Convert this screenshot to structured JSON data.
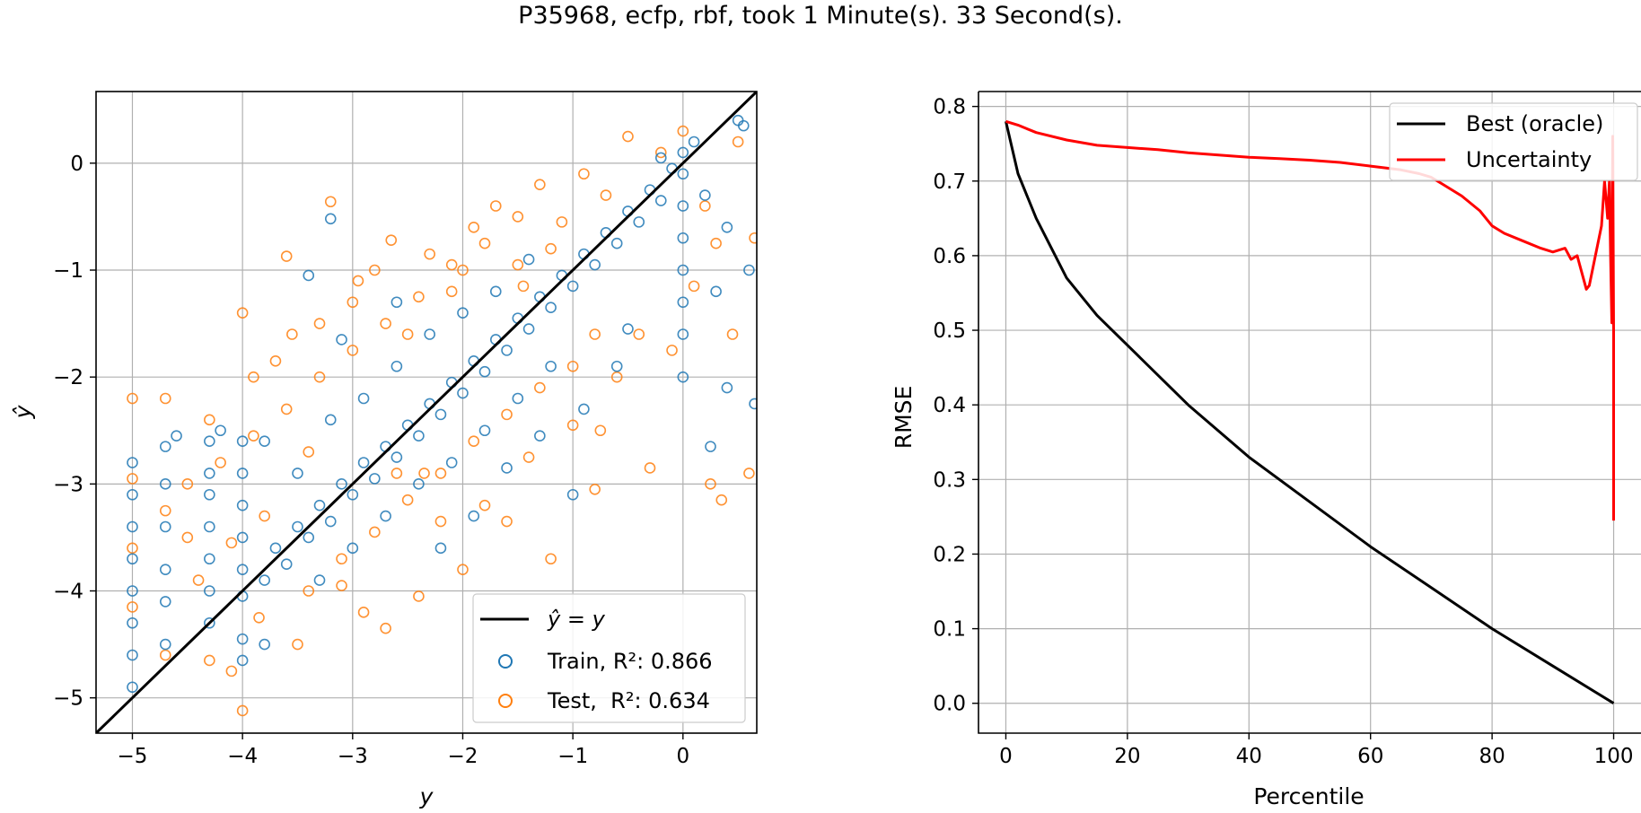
{
  "figure_title": "P35968, ecfp, rbf, took 1 Minute(s). 33 Second(s).",
  "colors": {
    "train": "#1f77b4",
    "test": "#ff7f0e",
    "identity": "#000000",
    "oracle": "#000000",
    "uncertainty": "#ff0000",
    "grid": "#b0b0b0"
  },
  "chart_data": [
    {
      "type": "scatter",
      "title": "",
      "xlabel": "y",
      "ylabel": "ŷ",
      "xlim": [
        -5.33,
        0.67
      ],
      "ylim": [
        -5.33,
        0.67
      ],
      "xticks": [
        -5,
        -4,
        -3,
        -2,
        -1,
        0
      ],
      "yticks": [
        -5,
        -4,
        -3,
        -2,
        -1,
        0
      ],
      "grid": true,
      "legend_position": "lower-right",
      "legend": [
        {
          "kind": "line",
          "label": "ŷ = y"
        },
        {
          "kind": "marker",
          "label": "Train, R²: 0.866"
        },
        {
          "kind": "marker",
          "label": "Test,  R²: 0.634"
        }
      ],
      "reference_line": {
        "name": "ŷ = y",
        "slope": 1,
        "intercept": 0
      },
      "series": [
        {
          "name": "Train",
          "marker": "open-circle",
          "r2": 0.866,
          "points": [
            [
              -5.0,
              -4.9
            ],
            [
              -5.0,
              -4.6
            ],
            [
              -5.0,
              -4.3
            ],
            [
              -5.0,
              -4.0
            ],
            [
              -5.0,
              -3.7
            ],
            [
              -5.0,
              -3.4
            ],
            [
              -5.0,
              -3.1
            ],
            [
              -5.0,
              -2.8
            ],
            [
              -4.7,
              -4.5
            ],
            [
              -4.7,
              -4.1
            ],
            [
              -4.7,
              -3.8
            ],
            [
              -4.7,
              -3.4
            ],
            [
              -4.7,
              -3.0
            ],
            [
              -4.7,
              -2.65
            ],
            [
              -4.3,
              -4.3
            ],
            [
              -4.3,
              -4.0
            ],
            [
              -4.3,
              -3.7
            ],
            [
              -4.3,
              -3.4
            ],
            [
              -4.3,
              -3.1
            ],
            [
              -4.3,
              -2.9
            ],
            [
              -4.3,
              -2.6
            ],
            [
              -4.0,
              -4.05
            ],
            [
              -4.0,
              -3.8
            ],
            [
              -4.0,
              -3.5
            ],
            [
              -4.0,
              -3.2
            ],
            [
              -4.0,
              -2.9
            ],
            [
              -4.0,
              -2.6
            ],
            [
              -4.0,
              -4.65
            ],
            [
              -3.8,
              -3.9
            ],
            [
              -3.7,
              -3.6
            ],
            [
              -3.6,
              -3.75
            ],
            [
              -3.5,
              -3.4
            ],
            [
              -3.4,
              -3.5
            ],
            [
              -3.3,
              -3.2
            ],
            [
              -3.2,
              -3.35
            ],
            [
              -3.1,
              -3.0
            ],
            [
              -3.0,
              -3.1
            ],
            [
              -2.9,
              -2.8
            ],
            [
              -2.8,
              -2.95
            ],
            [
              -2.7,
              -2.65
            ],
            [
              -2.6,
              -2.75
            ],
            [
              -2.5,
              -2.45
            ],
            [
              -2.4,
              -2.55
            ],
            [
              -2.3,
              -2.25
            ],
            [
              -2.2,
              -2.35
            ],
            [
              -2.1,
              -2.05
            ],
            [
              -2.0,
              -2.15
            ],
            [
              -1.9,
              -1.85
            ],
            [
              -1.8,
              -1.95
            ],
            [
              -1.7,
              -1.65
            ],
            [
              -1.6,
              -1.75
            ],
            [
              -1.5,
              -1.45
            ],
            [
              -1.4,
              -1.55
            ],
            [
              -1.3,
              -1.25
            ],
            [
              -1.2,
              -1.35
            ],
            [
              -1.1,
              -1.05
            ],
            [
              -1.0,
              -1.15
            ],
            [
              -0.9,
              -0.85
            ],
            [
              -0.8,
              -0.95
            ],
            [
              -0.7,
              -0.65
            ],
            [
              -0.6,
              -0.75
            ],
            [
              -0.5,
              -0.45
            ],
            [
              -0.4,
              -0.55
            ],
            [
              -0.3,
              -0.25
            ],
            [
              -0.2,
              -0.35
            ],
            [
              -0.1,
              -0.05
            ],
            [
              -3.5,
              -2.9
            ],
            [
              -3.2,
              -2.4
            ],
            [
              -2.9,
              -2.2
            ],
            [
              -2.6,
              -1.9
            ],
            [
              -2.3,
              -1.6
            ],
            [
              -2.0,
              -1.4
            ],
            [
              -1.7,
              -1.2
            ],
            [
              -1.4,
              -0.9
            ],
            [
              -3.3,
              -3.9
            ],
            [
              -3.0,
              -3.6
            ],
            [
              -2.7,
              -3.3
            ],
            [
              -2.4,
              -3.0
            ],
            [
              -2.1,
              -2.8
            ],
            [
              -1.8,
              -2.5
            ],
            [
              -1.5,
              -2.2
            ],
            [
              -1.2,
              -1.9
            ],
            [
              -3.8,
              -2.6
            ],
            [
              -3.4,
              -1.05
            ],
            [
              -3.2,
              -0.52
            ],
            [
              -3.1,
              -1.65
            ],
            [
              -2.6,
              -1.3
            ],
            [
              -2.2,
              -3.6
            ],
            [
              -1.9,
              -3.3
            ],
            [
              -1.6,
              -2.85
            ],
            [
              -1.3,
              -2.55
            ],
            [
              -1.0,
              -3.1
            ],
            [
              -0.9,
              -2.3
            ],
            [
              -0.6,
              -1.9
            ],
            [
              0.0,
              -0.1
            ],
            [
              0.0,
              -0.4
            ],
            [
              0.0,
              -0.7
            ],
            [
              0.0,
              -1.0
            ],
            [
              0.0,
              -1.3
            ],
            [
              0.0,
              -1.6
            ],
            [
              0.0,
              -2.0
            ],
            [
              0.0,
              0.1
            ],
            [
              0.2,
              -0.3
            ],
            [
              0.3,
              -1.2
            ],
            [
              0.4,
              -2.1
            ],
            [
              0.5,
              0.4
            ],
            [
              0.55,
              0.35
            ],
            [
              0.6,
              -1.0
            ],
            [
              0.65,
              -2.25
            ],
            [
              0.25,
              -2.65
            ],
            [
              0.1,
              0.2
            ],
            [
              -0.2,
              0.05
            ],
            [
              0.4,
              -0.6
            ],
            [
              -0.5,
              -1.55
            ],
            [
              -4.0,
              -4.45
            ],
            [
              -3.8,
              -4.5
            ],
            [
              -4.2,
              -2.5
            ],
            [
              -4.6,
              -2.55
            ]
          ]
        },
        {
          "name": "Test",
          "marker": "open-circle",
          "r2": 0.634,
          "points": [
            [
              -5.0,
              -2.2
            ],
            [
              -5.0,
              -2.95
            ],
            [
              -5.0,
              -3.6
            ],
            [
              -5.0,
              -4.15
            ],
            [
              -4.7,
              -2.2
            ],
            [
              -4.7,
              -3.25
            ],
            [
              -4.7,
              -4.6
            ],
            [
              -4.5,
              -3.5
            ],
            [
              -4.3,
              -2.4
            ],
            [
              -4.3,
              -4.65
            ],
            [
              -4.1,
              -4.75
            ],
            [
              -4.0,
              -1.4
            ],
            [
              -4.0,
              -5.12
            ],
            [
              -3.9,
              -2.0
            ],
            [
              -3.8,
              -3.3
            ],
            [
              -3.7,
              -1.85
            ],
            [
              -3.6,
              -0.87
            ],
            [
              -3.5,
              -4.5
            ],
            [
              -3.4,
              -2.7
            ],
            [
              -3.3,
              -1.5
            ],
            [
              -3.2,
              -0.36
            ],
            [
              -3.1,
              -3.95
            ],
            [
              -3.0,
              -1.3
            ],
            [
              -2.9,
              -4.2
            ],
            [
              -2.8,
              -1.0
            ],
            [
              -2.7,
              -4.35
            ],
            [
              -2.6,
              -2.9
            ],
            [
              -2.5,
              -1.6
            ],
            [
              -2.4,
              -4.05
            ],
            [
              -2.3,
              -0.85
            ],
            [
              -2.2,
              -3.35
            ],
            [
              -2.1,
              -1.2
            ],
            [
              -2.0,
              -3.8
            ],
            [
              -1.9,
              -0.6
            ],
            [
              -1.8,
              -3.2
            ],
            [
              -1.7,
              -0.4
            ],
            [
              -1.6,
              -3.35
            ],
            [
              -1.5,
              -0.95
            ],
            [
              -1.4,
              -2.75
            ],
            [
              -1.3,
              -0.2
            ],
            [
              -1.2,
              -3.7
            ],
            [
              -1.1,
              -0.55
            ],
            [
              -1.0,
              -2.45
            ],
            [
              -0.9,
              -0.1
            ],
            [
              -0.8,
              -3.05
            ],
            [
              -0.7,
              -0.3
            ],
            [
              -0.6,
              -2.0
            ],
            [
              -0.5,
              0.25
            ],
            [
              -0.4,
              -1.6
            ],
            [
              -0.3,
              -2.85
            ],
            [
              -0.2,
              0.1
            ],
            [
              -0.1,
              -1.75
            ],
            [
              0.0,
              0.3
            ],
            [
              0.1,
              -1.15
            ],
            [
              0.2,
              -0.4
            ],
            [
              0.25,
              -3.0
            ],
            [
              0.3,
              -0.75
            ],
            [
              0.35,
              -3.15
            ],
            [
              0.45,
              -1.6
            ],
            [
              0.6,
              -2.9
            ],
            [
              0.65,
              -0.7
            ],
            [
              0.5,
              0.2
            ],
            [
              -3.6,
              -2.3
            ],
            [
              -3.3,
              -2.0
            ],
            [
              -3.0,
              -1.75
            ],
            [
              -2.7,
              -1.5
            ],
            [
              -2.4,
              -1.25
            ],
            [
              -2.1,
              -0.95
            ],
            [
              -1.8,
              -0.75
            ],
            [
              -1.5,
              -0.5
            ],
            [
              -3.4,
              -4.0
            ],
            [
              -3.1,
              -3.7
            ],
            [
              -2.8,
              -3.45
            ],
            [
              -2.5,
              -3.15
            ],
            [
              -2.2,
              -2.9
            ],
            [
              -1.9,
              -2.6
            ],
            [
              -1.6,
              -2.35
            ],
            [
              -1.3,
              -2.1
            ],
            [
              -4.5,
              -3.0
            ],
            [
              -4.2,
              -2.8
            ],
            [
              -3.9,
              -2.55
            ],
            [
              -4.4,
              -3.9
            ],
            [
              -4.1,
              -3.55
            ],
            [
              -3.85,
              -4.25
            ],
            [
              -1.0,
              -1.9
            ],
            [
              -0.8,
              -1.6
            ],
            [
              -2.0,
              -1.0
            ],
            [
              -2.35,
              -2.9
            ],
            [
              -1.2,
              -0.8
            ],
            [
              -0.75,
              -2.5
            ],
            [
              -3.55,
              -1.6
            ],
            [
              -2.95,
              -1.1
            ],
            [
              -2.65,
              -0.72
            ],
            [
              -1.45,
              -1.15
            ]
          ]
        }
      ]
    },
    {
      "type": "line",
      "title": "",
      "xlabel": "Percentile",
      "ylabel": "RMSE",
      "xlim": [
        -4.5,
        104.5
      ],
      "ylim": [
        -0.04,
        0.82
      ],
      "xticks": [
        0,
        20,
        40,
        60,
        80,
        100
      ],
      "yticks": [
        0.0,
        0.1,
        0.2,
        0.3,
        0.4,
        0.5,
        0.6,
        0.7,
        0.8
      ],
      "grid": true,
      "legend_position": "top-right",
      "series": [
        {
          "name": "Best (oracle)",
          "x": [
            0,
            2,
            5,
            10,
            15,
            20,
            30,
            40,
            50,
            60,
            70,
            80,
            90,
            100
          ],
          "y": [
            0.78,
            0.71,
            0.65,
            0.57,
            0.52,
            0.48,
            0.4,
            0.33,
            0.27,
            0.21,
            0.155,
            0.1,
            0.05,
            0.0
          ]
        },
        {
          "name": "Uncertainty",
          "x": [
            0,
            2,
            5,
            10,
            15,
            20,
            25,
            30,
            35,
            40,
            45,
            50,
            55,
            60,
            62,
            65,
            68,
            70,
            72,
            75,
            78,
            80,
            82,
            85,
            88,
            90,
            92,
            93,
            94,
            95,
            95.5,
            96,
            97,
            98,
            98.5,
            99,
            99.3,
            99.5,
            99.7,
            99.85,
            100,
            100.0
          ],
          "y": [
            0.78,
            0.775,
            0.765,
            0.755,
            0.748,
            0.745,
            0.742,
            0.738,
            0.735,
            0.732,
            0.73,
            0.728,
            0.725,
            0.72,
            0.718,
            0.715,
            0.71,
            0.705,
            0.695,
            0.68,
            0.66,
            0.64,
            0.63,
            0.62,
            0.61,
            0.605,
            0.61,
            0.595,
            0.6,
            0.57,
            0.555,
            0.56,
            0.6,
            0.64,
            0.7,
            0.65,
            0.7,
            0.6,
            0.51,
            0.76,
            0.5,
            0.245
          ]
        }
      ]
    }
  ]
}
